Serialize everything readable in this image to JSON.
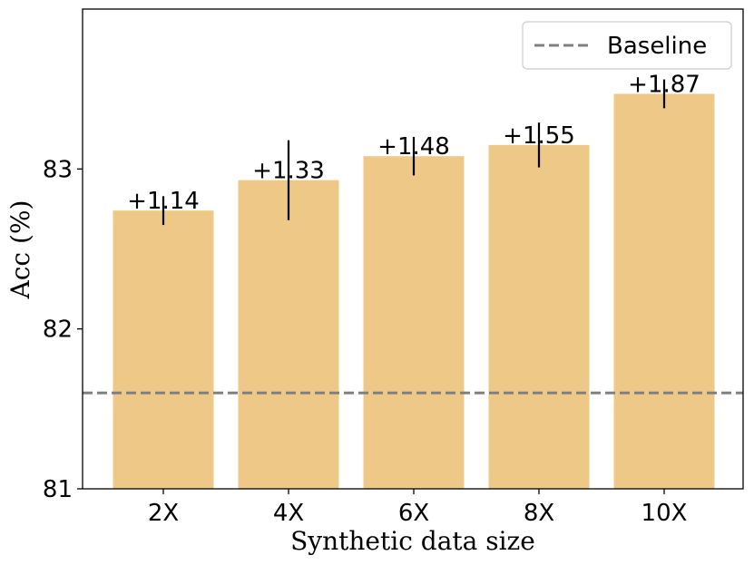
{
  "chart_data": {
    "type": "bar",
    "categories": [
      "2X",
      "4X",
      "6X",
      "8X",
      "10X"
    ],
    "values": [
      82.74,
      82.93,
      83.08,
      83.15,
      83.47
    ],
    "errors": [
      0.09,
      0.25,
      0.12,
      0.14,
      0.09
    ],
    "annotations": [
      "+1.14",
      "+1.33",
      "+1.48",
      "+1.55",
      "+1.87"
    ],
    "baseline": {
      "name": "Baseline",
      "value": 81.6,
      "style": "dashed",
      "color": "#808080"
    },
    "xlabel": "Synthetic data size",
    "ylabel": "Acc (%)",
    "ylim": [
      81,
      84
    ],
    "yticks": [
      "81",
      "82",
      "83"
    ],
    "ytick_values": [
      81,
      82,
      83
    ],
    "bar_color": "#edc886",
    "grid": false,
    "legend_position": "top-right"
  }
}
